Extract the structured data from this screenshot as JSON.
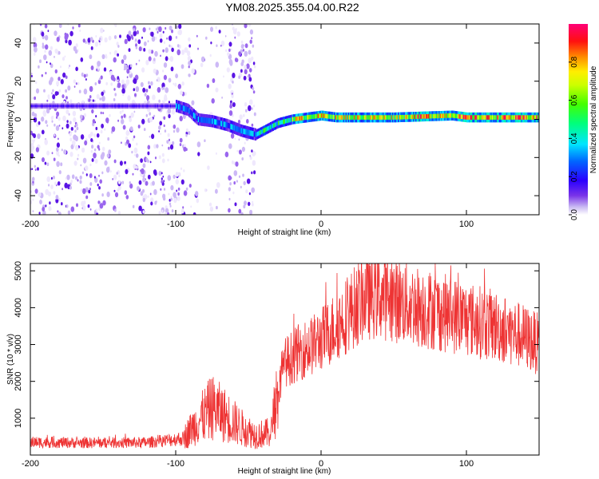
{
  "title": "YM08.2025.355.04.00.R22",
  "chart_data": [
    {
      "type": "heatmap",
      "xlabel": "Height of straight line (km)",
      "ylabel": "Frequency (Hz)",
      "xlim": [
        -200,
        150
      ],
      "ylim": [
        -50,
        50
      ],
      "xticks": [
        -200,
        -100,
        0,
        100
      ],
      "yticks": [
        -40,
        -20,
        0,
        20,
        40
      ],
      "colorbar": {
        "label": "Normalized spectral amplitude",
        "range": [
          0.0,
          1.0
        ],
        "ticks": [
          "0.0",
          "0.2",
          "0.4",
          "0.6",
          "0.8"
        ]
      },
      "ridge": {
        "x": [
          -200,
          -150,
          -110,
          -100,
          -92,
          -85,
          -75,
          -65,
          -55,
          -45,
          -40,
          -30,
          -20,
          -10,
          0,
          10,
          50,
          90,
          100,
          150
        ],
        "y": [
          7,
          7,
          7,
          7,
          5,
          0,
          -1,
          -3,
          -6,
          -8,
          -6,
          -2,
          0,
          1,
          2,
          1,
          1,
          2,
          1,
          1
        ]
      }
    },
    {
      "type": "line",
      "xlabel": "Height of straight line (km)",
      "ylabel": "SNR (10 * v/v)",
      "xlim": [
        -200,
        150
      ],
      "ylim": [
        0,
        5200
      ],
      "xticks": [
        -200,
        -100,
        0,
        100
      ],
      "yticks": [
        1000,
        2000,
        3000,
        4000,
        5000
      ],
      "color": "#ee3333",
      "envelope": {
        "x": [
          -200,
          -160,
          -120,
          -95,
          -85,
          -75,
          -65,
          -55,
          -45,
          -35,
          -30,
          -25,
          -15,
          -5,
          5,
          15,
          30,
          40,
          60,
          80,
          100,
          120,
          140,
          150
        ],
        "y": [
          350,
          330,
          340,
          450,
          900,
          1300,
          1050,
          750,
          550,
          600,
          1600,
          2500,
          2800,
          3000,
          3300,
          3700,
          4300,
          4350,
          4100,
          3900,
          3700,
          3500,
          3200,
          3000
        ]
      }
    }
  ]
}
